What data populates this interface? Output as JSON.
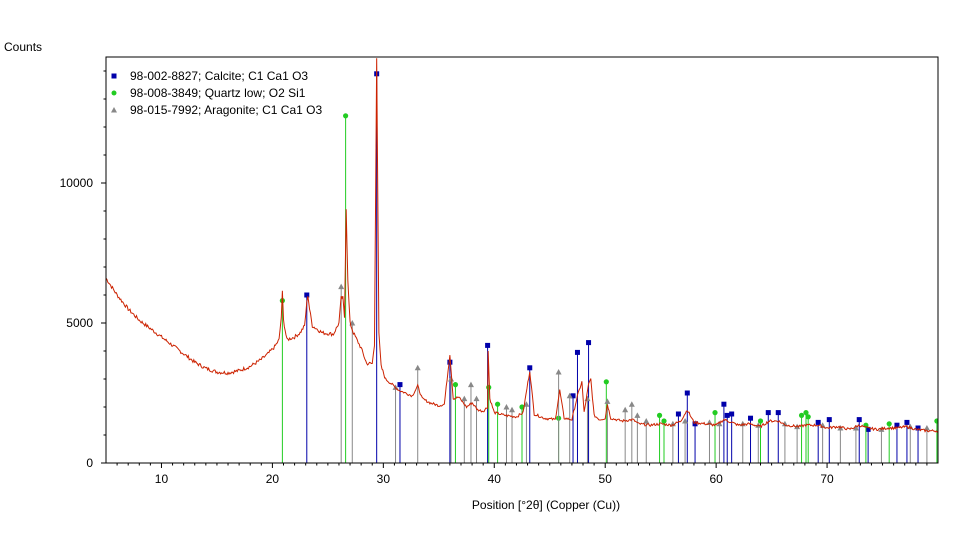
{
  "chart_data": {
    "type": "line",
    "ylabel": "Counts",
    "xlabel": "Position [°2θ] (Copper (Cu))",
    "xlim": [
      5,
      80
    ],
    "ylim": [
      0,
      14500
    ],
    "x_ticks": [
      10,
      20,
      30,
      40,
      50,
      60,
      70
    ],
    "y_ticks": [
      0,
      5000,
      10000
    ],
    "grid": false,
    "legend_position": "top-left",
    "pattern": {
      "color": "#cc2200",
      "points": [
        [
          5,
          6600
        ],
        [
          6,
          6000
        ],
        [
          7,
          5500
        ],
        [
          8,
          5100
        ],
        [
          9,
          4800
        ],
        [
          10,
          4500
        ],
        [
          11,
          4200
        ],
        [
          12,
          3900
        ],
        [
          13,
          3600
        ],
        [
          14,
          3380
        ],
        [
          15,
          3250
        ],
        [
          16,
          3220
        ],
        [
          17,
          3300
        ],
        [
          18,
          3450
        ],
        [
          19,
          3700
        ],
        [
          19.6,
          3900
        ],
        [
          20.2,
          4150
        ],
        [
          20.6,
          4400
        ],
        [
          20.8,
          5200
        ],
        [
          20.9,
          6100
        ],
        [
          21.0,
          5100
        ],
        [
          21.3,
          4400
        ],
        [
          22.0,
          4500
        ],
        [
          22.5,
          4650
        ],
        [
          22.9,
          4900
        ],
        [
          23.1,
          5700
        ],
        [
          23.2,
          6000
        ],
        [
          23.35,
          5500
        ],
        [
          23.6,
          4900
        ],
        [
          24.5,
          4650
        ],
        [
          25.5,
          4600
        ],
        [
          26.0,
          5000
        ],
        [
          26.2,
          5900
        ],
        [
          26.35,
          5900
        ],
        [
          26.5,
          5200
        ],
        [
          26.65,
          9100
        ],
        [
          26.8,
          6500
        ],
        [
          27.0,
          5000
        ],
        [
          27.3,
          4650
        ],
        [
          28.0,
          4100
        ],
        [
          28.5,
          3550
        ],
        [
          29.0,
          3550
        ],
        [
          29.2,
          4200
        ],
        [
          29.4,
          14500
        ],
        [
          29.6,
          4600
        ],
        [
          29.8,
          3450
        ],
        [
          30.2,
          3000
        ],
        [
          30.8,
          2800
        ],
        [
          31.4,
          2600
        ],
        [
          32.0,
          2500
        ],
        [
          32.6,
          2400
        ],
        [
          33.1,
          2750
        ],
        [
          33.5,
          2300
        ],
        [
          34.2,
          2150
        ],
        [
          35.0,
          2050
        ],
        [
          35.5,
          2100
        ],
        [
          36.0,
          3900
        ],
        [
          36.3,
          2300
        ],
        [
          36.8,
          2350
        ],
        [
          37.5,
          2000
        ],
        [
          38.0,
          2150
        ],
        [
          38.5,
          1900
        ],
        [
          39.0,
          1850
        ],
        [
          39.4,
          2000
        ],
        [
          39.45,
          4000
        ],
        [
          39.6,
          2300
        ],
        [
          40.0,
          1800
        ],
        [
          41.0,
          1700
        ],
        [
          42.0,
          1650
        ],
        [
          42.6,
          1800
        ],
        [
          43.2,
          3300
        ],
        [
          43.6,
          1750
        ],
        [
          44.5,
          1600
        ],
        [
          45.5,
          1550
        ],
        [
          45.9,
          2600
        ],
        [
          46.3,
          1600
        ],
        [
          47.0,
          1550
        ],
        [
          47.5,
          2400
        ],
        [
          47.9,
          2900
        ],
        [
          48.1,
          1800
        ],
        [
          48.5,
          2800
        ],
        [
          48.7,
          3000
        ],
        [
          49.0,
          1700
        ],
        [
          49.5,
          1550
        ],
        [
          50.0,
          1600
        ],
        [
          50.2,
          2100
        ],
        [
          50.5,
          1600
        ],
        [
          51.5,
          1500
        ],
        [
          52.5,
          1550
        ],
        [
          53.0,
          1400
        ],
        [
          54.0,
          1350
        ],
        [
          55.0,
          1400
        ],
        [
          56.0,
          1350
        ],
        [
          56.8,
          1500
        ],
        [
          57.4,
          1900
        ],
        [
          58.0,
          1450
        ],
        [
          59.0,
          1400
        ],
        [
          60.0,
          1350
        ],
        [
          60.7,
          1550
        ],
        [
          61.4,
          1450
        ],
        [
          62.0,
          1350
        ],
        [
          63.0,
          1400
        ],
        [
          64.0,
          1300
        ],
        [
          64.8,
          1500
        ],
        [
          65.6,
          1500
        ],
        [
          66.3,
          1350
        ],
        [
          67.5,
          1300
        ],
        [
          68.0,
          1350
        ],
        [
          69.2,
          1350
        ],
        [
          70.0,
          1250
        ],
        [
          71.0,
          1300
        ],
        [
          72.0,
          1200
        ],
        [
          72.9,
          1350
        ],
        [
          73.6,
          1250
        ],
        [
          74.5,
          1200
        ],
        [
          75.5,
          1250
        ],
        [
          76.3,
          1250
        ],
        [
          77.2,
          1300
        ],
        [
          78.0,
          1200
        ],
        [
          79.0,
          1150
        ],
        [
          80.0,
          1150
        ]
      ]
    },
    "series": [
      {
        "name": "98-002-8827; Calcite; C1 Ca1 O3",
        "color": "#0000aa",
        "marker": "square",
        "peaks": [
          [
            23.1,
            6000
          ],
          [
            29.4,
            13900
          ],
          [
            31.5,
            2800
          ],
          [
            36.0,
            3600
          ],
          [
            39.4,
            4200
          ],
          [
            43.2,
            3400
          ],
          [
            47.1,
            2400
          ],
          [
            47.5,
            3950
          ],
          [
            48.5,
            4300
          ],
          [
            56.6,
            1750
          ],
          [
            57.4,
            2500
          ],
          [
            58.1,
            1400
          ],
          [
            60.7,
            2100
          ],
          [
            61.0,
            1700
          ],
          [
            61.4,
            1750
          ],
          [
            63.1,
            1600
          ],
          [
            64.7,
            1800
          ],
          [
            65.6,
            1800
          ],
          [
            69.2,
            1450
          ],
          [
            70.2,
            1550
          ],
          [
            72.9,
            1550
          ],
          [
            73.7,
            1200
          ],
          [
            76.3,
            1350
          ],
          [
            77.2,
            1450
          ],
          [
            78.2,
            1250
          ]
        ]
      },
      {
        "name": "98-008-3849; Quartz low; O2 Si1",
        "color": "#22cc22",
        "marker": "circle",
        "peaks": [
          [
            20.9,
            5800
          ],
          [
            26.6,
            12400
          ],
          [
            36.5,
            2800
          ],
          [
            39.5,
            2700
          ],
          [
            40.3,
            2100
          ],
          [
            42.5,
            2000
          ],
          [
            45.8,
            1600
          ],
          [
            50.1,
            2900
          ],
          [
            54.9,
            1700
          ],
          [
            55.3,
            1500
          ],
          [
            59.9,
            1800
          ],
          [
            64.0,
            1500
          ],
          [
            67.7,
            1700
          ],
          [
            68.1,
            1800
          ],
          [
            68.3,
            1650
          ],
          [
            73.5,
            1350
          ],
          [
            75.6,
            1400
          ],
          [
            79.9,
            1500
          ]
        ]
      },
      {
        "name": "98-015-7992; Aragonite; C1 Ca1 O3",
        "color": "#888888",
        "marker": "triangle",
        "peaks": [
          [
            26.2,
            6300
          ],
          [
            27.2,
            5000
          ],
          [
            31.1,
            2700
          ],
          [
            33.1,
            3400
          ],
          [
            36.1,
            3000
          ],
          [
            37.3,
            2300
          ],
          [
            37.9,
            2800
          ],
          [
            38.4,
            2300
          ],
          [
            41.1,
            2000
          ],
          [
            41.6,
            1900
          ],
          [
            42.9,
            2100
          ],
          [
            45.8,
            3250
          ],
          [
            46.8,
            2400
          ],
          [
            48.4,
            2300
          ],
          [
            50.2,
            2200
          ],
          [
            51.8,
            1900
          ],
          [
            52.4,
            2100
          ],
          [
            52.9,
            1700
          ],
          [
            53.7,
            1500
          ],
          [
            56.1,
            1400
          ],
          [
            57.2,
            1500
          ],
          [
            59.4,
            1450
          ],
          [
            60.3,
            1400
          ],
          [
            62.4,
            1400
          ],
          [
            63.8,
            1350
          ],
          [
            66.2,
            1400
          ],
          [
            67.3,
            1300
          ],
          [
            69.6,
            1350
          ],
          [
            71.2,
            1250
          ],
          [
            72.6,
            1250
          ],
          [
            74.9,
            1200
          ],
          [
            77.5,
            1300
          ],
          [
            79.0,
            1250
          ]
        ]
      }
    ]
  }
}
